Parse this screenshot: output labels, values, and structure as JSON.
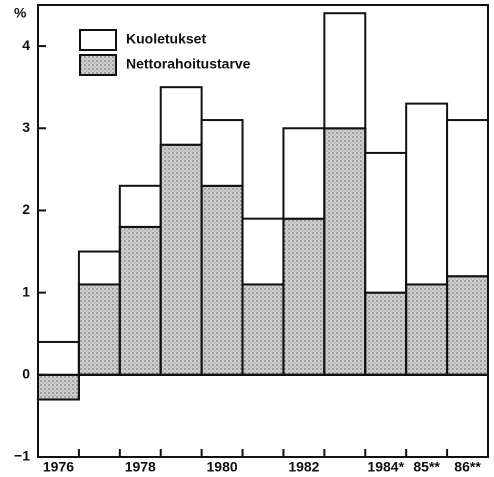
{
  "chart_data": {
    "type": "stacked_bar",
    "ylabel": "%",
    "categories": [
      "1976",
      null,
      "1978",
      null,
      "1980",
      null,
      "1982",
      null,
      "1984*",
      "85**",
      "86**"
    ],
    "series": [
      {
        "name": "Nettorahoitustarve",
        "color": "#cfcfcf",
        "values": [
          -0.3,
          1.1,
          1.8,
          2.8,
          2.3,
          1.1,
          1.9,
          3.0,
          1.0,
          1.1,
          1.2
        ]
      },
      {
        "name": "Kuoletukset",
        "color": "#ffffff",
        "values": [
          0.4,
          0.4,
          0.5,
          0.7,
          0.8,
          0.8,
          1.1,
          1.4,
          1.7,
          2.2,
          1.9
        ]
      }
    ],
    "ylim": [
      -1,
      4.5
    ],
    "yticks": [
      {
        "value": -1,
        "label": "−1"
      },
      0,
      1,
      2,
      3,
      4
    ]
  }
}
